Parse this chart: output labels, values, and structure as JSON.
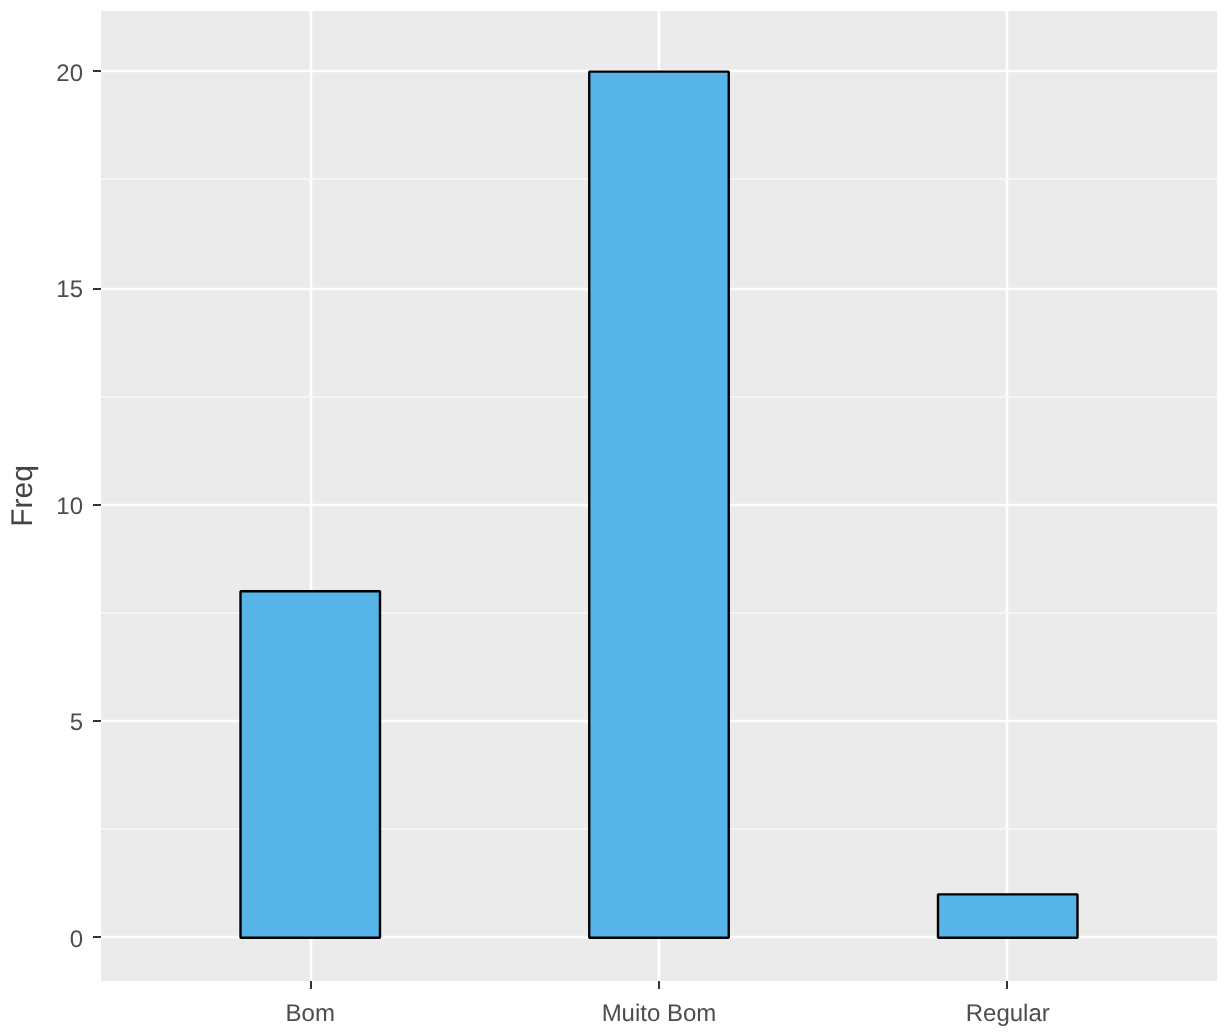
{
  "chart_data": {
    "type": "bar",
    "ylabel": "Freq",
    "categories": [
      "Bom",
      "Muito Bom",
      "Regular"
    ],
    "values": [
      8,
      20,
      1
    ],
    "color": "#56b4e9",
    "ylim": [
      -1,
      21.4
    ],
    "yticks": [
      0,
      5,
      10,
      15,
      20
    ],
    "grid": true
  }
}
